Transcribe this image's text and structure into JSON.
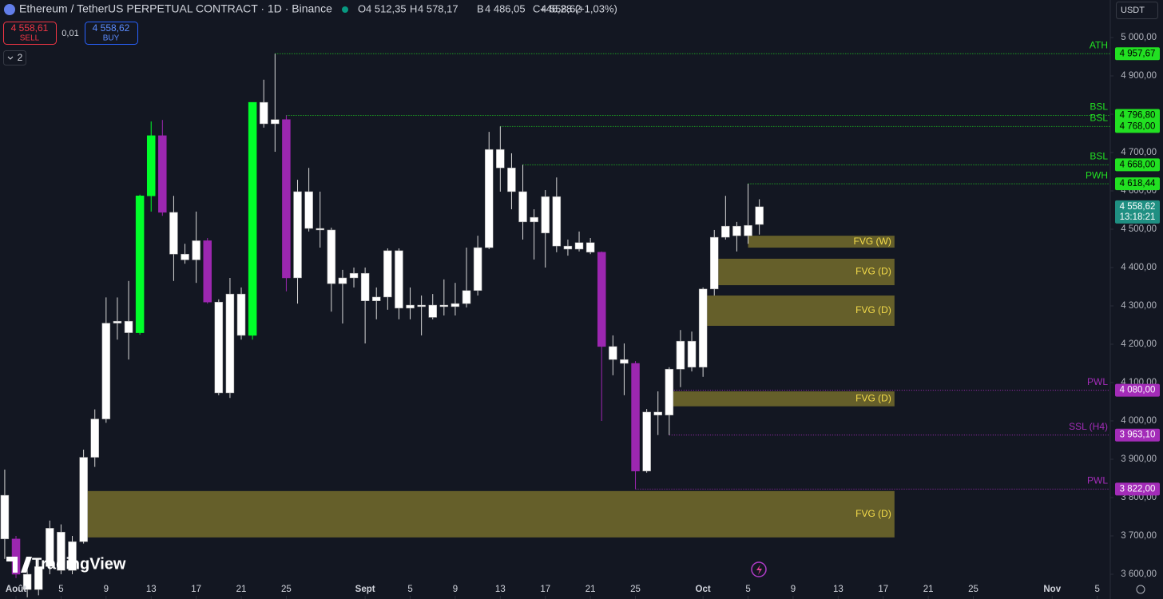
{
  "header": {
    "symbol": "Ethereum / TetherUS PERPETUAL CONTRACT · 1D · Binance",
    "ohlc": [
      {
        "key": "O",
        "value": "4 512,35"
      },
      {
        "key": "H",
        "value": "4 578,17"
      },
      {
        "key": "B",
        "value": "4 486,05"
      },
      {
        "key": "C",
        "value": "4 558,62"
      }
    ],
    "change": "+46,28 (+1,03%)"
  },
  "order": {
    "sell_price": "4 558,61",
    "sell": "SELL",
    "spread": "0,01",
    "buy_price": "4 558,62",
    "buy": "BUY"
  },
  "indicator_count": 2,
  "currency": "USDT",
  "watermark": "TradingView",
  "chart_data": {
    "type": "candlestick",
    "x": [
      -1,
      0,
      1,
      2,
      3,
      4,
      5,
      6,
      7,
      8,
      9,
      10,
      11,
      12,
      13,
      14,
      15,
      16,
      17,
      18,
      19,
      20,
      21,
      22,
      23,
      24,
      25,
      26,
      27,
      28,
      29,
      30,
      31,
      32,
      33,
      34,
      35,
      36,
      37,
      38,
      39,
      40,
      41,
      42,
      43,
      44,
      45,
      46,
      47,
      48,
      49,
      50,
      51,
      52,
      53,
      54,
      55,
      56,
      57,
      58,
      59,
      60,
      61,
      62,
      63,
      64,
      65,
      66
    ],
    "open": [
      3806,
      3692,
      3600,
      3560,
      3620,
      3710,
      3610,
      3685,
      3905,
      4005,
      4255,
      4260,
      4230,
      4587,
      4744,
      4544,
      4435,
      4420,
      4470,
      4310,
      4073,
      4331,
      4223,
      4831,
      4775,
      4786,
      4373,
      4598,
      4502,
      4498,
      4358,
      4373,
      4385,
      4313,
      4323,
      4444,
      4294,
      4302,
      4270,
      4302,
      4298,
      4306,
      4340,
      4452,
      4708,
      4660,
      4598,
      4519,
      4490,
      4585,
      4456,
      4448,
      4465,
      4440,
      4194,
      4160,
      4150,
      3869,
      4023,
      4015,
      4135,
      4208,
      4140,
      4344,
      4479,
      4508,
      4483,
      4512.35
    ],
    "high": [
      3873,
      3700,
      3620,
      3640,
      3740,
      3730,
      3700,
      3925,
      4030,
      4322,
      4322,
      4365,
      4590,
      4781,
      4785,
      4587,
      4462,
      4546,
      4477,
      4317,
      4373,
      4348,
      4831,
      4890,
      4957.67,
      4796.8,
      4629,
      4660,
      4598,
      4504,
      4394,
      4400,
      4400,
      4348,
      4450,
      4450,
      4348,
      4327,
      4331,
      4369,
      4360,
      4452,
      4483,
      4754,
      4768,
      4698,
      4668,
      4552,
      4602,
      4635,
      4473,
      4494,
      4477,
      4442,
      4223,
      4202,
      4156,
      4031,
      4077,
      4140,
      4237,
      4233,
      4348,
      4498,
      4587,
      4519,
      4618.44,
      4578.17
    ],
    "low": [
      3640,
      3590,
      3540,
      3545,
      3600,
      3600,
      3600,
      3680,
      3880,
      3995,
      4212,
      4160,
      4225,
      4546,
      4535,
      4365,
      4410,
      4360,
      4306,
      4067,
      4060,
      4212,
      4212,
      4765,
      4702,
      4338,
      4306,
      4494,
      4452,
      4285,
      4254,
      4348,
      4202,
      4265,
      4290,
      4265,
      4265,
      4223,
      4265,
      4275,
      4275,
      4296,
      4327,
      4448,
      4598,
      4552,
      4473,
      4421,
      4400,
      4440,
      4431,
      4442,
      4435,
      4000,
      4119,
      4067,
      3822,
      3865,
      3963.1,
      3963,
      4088,
      4129,
      4115,
      4327,
      4473,
      4442,
      4462,
      4486.05
    ],
    "close": [
      3692,
      3600,
      3560,
      3620,
      3720,
      3610,
      3685,
      3905,
      4005,
      4255,
      4260,
      4230,
      4587,
      4744,
      4544,
      4435,
      4420,
      4470,
      4310,
      4073,
      4331,
      4223,
      4831,
      4775,
      4786,
      4373,
      4598,
      4502,
      4498,
      4358,
      4373,
      4385,
      4313,
      4323,
      4444,
      4294,
      4302,
      4298,
      4302,
      4298,
      4306,
      4340,
      4452,
      4708,
      4660,
      4598,
      4519,
      4531,
      4585,
      4456,
      4448,
      4465,
      4440,
      4194,
      4160,
      4150,
      3869,
      4023,
      4015,
      4135,
      4208,
      4140,
      4344,
      4479,
      4508,
      4483,
      4510,
      4558.62
    ],
    "colors": [
      "#ffffff",
      "#9c27b0",
      "#ffffff",
      "#ffffff",
      "#ffffff",
      "#ffffff",
      "#ffffff",
      "#ffffff",
      "#ffffff",
      "#ffffff",
      "#ffffff",
      "#ffffff",
      "#00ff2a",
      "#00ff2a",
      "#9c27b0",
      "#ffffff",
      "#ffffff",
      "#ffffff",
      "#9c27b0",
      "#ffffff",
      "#ffffff",
      "#ffffff",
      "#00ff2a",
      "#ffffff",
      "#ffffff",
      "#9c27b0",
      "#ffffff",
      "#ffffff",
      "#ffffff",
      "#ffffff",
      "#ffffff",
      "#ffffff",
      "#ffffff",
      "#ffffff",
      "#ffffff",
      "#ffffff",
      "#ffffff",
      "#ffffff",
      "#ffffff",
      "#ffffff",
      "#ffffff",
      "#ffffff",
      "#ffffff",
      "#ffffff",
      "#ffffff",
      "#ffffff",
      "#ffffff",
      "#ffffff",
      "#ffffff",
      "#ffffff",
      "#ffffff",
      "#ffffff",
      "#ffffff",
      "#9c27b0",
      "#ffffff",
      "#ffffff",
      "#9c27b0",
      "#ffffff",
      "#ffffff",
      "#ffffff",
      "#ffffff",
      "#ffffff",
      "#ffffff",
      "#ffffff",
      "#ffffff",
      "#ffffff",
      "#ffffff",
      "#ffffff"
    ],
    "xlim": [
      -1.42,
      97.16
    ],
    "ylim": [
      3535.4,
      5097.9
    ],
    "xticks": [
      {
        "value": 0,
        "label": "Août"
      },
      {
        "value": 4,
        "label": "5"
      },
      {
        "value": 8,
        "label": "9"
      },
      {
        "value": 12,
        "label": "13"
      },
      {
        "value": 16,
        "label": "17"
      },
      {
        "value": 20,
        "label": "21"
      },
      {
        "value": 24,
        "label": "25"
      },
      {
        "value": 31,
        "label": "Sept"
      },
      {
        "value": 35,
        "label": "5"
      },
      {
        "value": 39,
        "label": "9"
      },
      {
        "value": 43,
        "label": "13"
      },
      {
        "value": 47,
        "label": "17"
      },
      {
        "value": 51,
        "label": "21"
      },
      {
        "value": 55,
        "label": "25"
      },
      {
        "value": 61,
        "label": "Oct"
      },
      {
        "value": 65,
        "label": "5"
      },
      {
        "value": 69,
        "label": "9"
      },
      {
        "value": 73,
        "label": "13"
      },
      {
        "value": 77,
        "label": "17"
      },
      {
        "value": 81,
        "label": "21"
      },
      {
        "value": 85,
        "label": "25"
      },
      {
        "value": 92,
        "label": "Nov"
      },
      {
        "value": 96,
        "label": "5"
      }
    ],
    "yticks": [
      {
        "value": 5000,
        "label": "5 000,00"
      },
      {
        "value": 4900,
        "label": "4 900,00"
      },
      {
        "value": 4800,
        "label": "4 800,00"
      },
      {
        "value": 4700,
        "label": "4 700,00"
      },
      {
        "value": 4600,
        "label": "4 600,00"
      },
      {
        "value": 4500,
        "label": "4 500,00"
      },
      {
        "value": 4400,
        "label": "4 400,00"
      },
      {
        "value": 4300,
        "label": "4 300,00"
      },
      {
        "value": 4200,
        "label": "4 200,00"
      },
      {
        "value": 4100,
        "label": "4 100,00"
      },
      {
        "value": 4000,
        "label": "4 000,00"
      },
      {
        "value": 3900,
        "label": "3 900,00"
      },
      {
        "value": 3800,
        "label": "3 800,00"
      },
      {
        "value": 3700,
        "label": "3 700,00"
      },
      {
        "value": 3600,
        "label": "3 600,00"
      }
    ],
    "levels": [
      {
        "name": "ATH",
        "value": 4957.67,
        "value_label": "4 957,67",
        "start": 23,
        "color": "#22e022",
        "box_text": "#000000"
      },
      {
        "name": "BSL",
        "value": 4796.8,
        "value_label": "4 796,80",
        "start": 24,
        "color": "#22e022",
        "box_text": "#000000"
      },
      {
        "name": "BSL",
        "value": 4768,
        "value_label": "4 768,00",
        "start": 43,
        "color": "#22e022",
        "box_text": "#000000"
      },
      {
        "name": "BSL",
        "value": 4668,
        "value_label": "4 668,00",
        "start": 45,
        "color": "#22e022",
        "box_text": "#000000"
      },
      {
        "name": "PWH",
        "value": 4618.44,
        "value_label": "4 618,44",
        "start": 65,
        "color": "#22e022",
        "box_text": "#000000"
      },
      {
        "name": "PWL",
        "value": 4080,
        "value_label": "4 080,00",
        "start": 58,
        "color": "#a32cb8",
        "box_text": "#ffffff"
      },
      {
        "name": "SSL (H4)",
        "value": 3963.1,
        "value_label": "3 963,10",
        "start": 58,
        "color": "#a32cb8",
        "box_text": "#ffffff"
      },
      {
        "name": "PWL",
        "value": 3822,
        "value_label": "3 822,00",
        "start": 55,
        "color": "#a32cb8",
        "box_text": "#ffffff"
      }
    ],
    "zones": [
      {
        "label": "FVG (W)",
        "low": 4452,
        "high": 4483,
        "start": 65,
        "end": 78
      },
      {
        "label": "FVG (D)",
        "low": 4354,
        "high": 4423,
        "start": 62,
        "end": 78
      },
      {
        "label": "FVG (D)",
        "low": 4248,
        "high": 4327,
        "start": 61,
        "end": 78
      },
      {
        "label": "FVG (D)",
        "low": 4038,
        "high": 4077,
        "start": 58,
        "end": 78
      },
      {
        "label": "FVG (D)",
        "low": 3696,
        "high": 3817,
        "start": 6,
        "end": 78
      }
    ],
    "zone_color": "#746c2c",
    "zone_text_color": "#f5dc4a",
    "last": {
      "value": 4558.62,
      "label": "4 558,62",
      "countdown": "13:18:21",
      "color": "#1f8f82"
    }
  }
}
